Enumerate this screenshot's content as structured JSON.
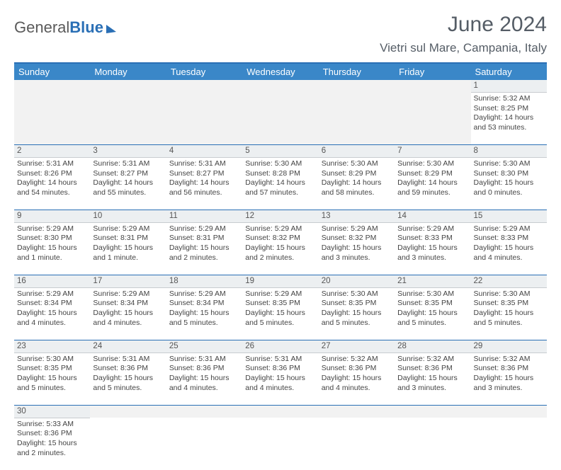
{
  "logo": {
    "text_a": "General",
    "text_b": "Blue"
  },
  "title": "June 2024",
  "location": "Vietri sul Mare, Campania, Italy",
  "colors": {
    "header_bg": "#3a87c8",
    "border": "#2a6fb5",
    "daynum_bg": "#eceff1",
    "text": "#444444"
  },
  "day_headers": [
    "Sunday",
    "Monday",
    "Tuesday",
    "Wednesday",
    "Thursday",
    "Friday",
    "Saturday"
  ],
  "weeks": [
    [
      null,
      null,
      null,
      null,
      null,
      null,
      {
        "n": "1",
        "sunrise": "Sunrise: 5:32 AM",
        "sunset": "Sunset: 8:25 PM",
        "daylight": "Daylight: 14 hours and 53 minutes."
      }
    ],
    [
      {
        "n": "2",
        "sunrise": "Sunrise: 5:31 AM",
        "sunset": "Sunset: 8:26 PM",
        "daylight": "Daylight: 14 hours and 54 minutes."
      },
      {
        "n": "3",
        "sunrise": "Sunrise: 5:31 AM",
        "sunset": "Sunset: 8:27 PM",
        "daylight": "Daylight: 14 hours and 55 minutes."
      },
      {
        "n": "4",
        "sunrise": "Sunrise: 5:31 AM",
        "sunset": "Sunset: 8:27 PM",
        "daylight": "Daylight: 14 hours and 56 minutes."
      },
      {
        "n": "5",
        "sunrise": "Sunrise: 5:30 AM",
        "sunset": "Sunset: 8:28 PM",
        "daylight": "Daylight: 14 hours and 57 minutes."
      },
      {
        "n": "6",
        "sunrise": "Sunrise: 5:30 AM",
        "sunset": "Sunset: 8:29 PM",
        "daylight": "Daylight: 14 hours and 58 minutes."
      },
      {
        "n": "7",
        "sunrise": "Sunrise: 5:30 AM",
        "sunset": "Sunset: 8:29 PM",
        "daylight": "Daylight: 14 hours and 59 minutes."
      },
      {
        "n": "8",
        "sunrise": "Sunrise: 5:30 AM",
        "sunset": "Sunset: 8:30 PM",
        "daylight": "Daylight: 15 hours and 0 minutes."
      }
    ],
    [
      {
        "n": "9",
        "sunrise": "Sunrise: 5:29 AM",
        "sunset": "Sunset: 8:30 PM",
        "daylight": "Daylight: 15 hours and 1 minute."
      },
      {
        "n": "10",
        "sunrise": "Sunrise: 5:29 AM",
        "sunset": "Sunset: 8:31 PM",
        "daylight": "Daylight: 15 hours and 1 minute."
      },
      {
        "n": "11",
        "sunrise": "Sunrise: 5:29 AM",
        "sunset": "Sunset: 8:31 PM",
        "daylight": "Daylight: 15 hours and 2 minutes."
      },
      {
        "n": "12",
        "sunrise": "Sunrise: 5:29 AM",
        "sunset": "Sunset: 8:32 PM",
        "daylight": "Daylight: 15 hours and 2 minutes."
      },
      {
        "n": "13",
        "sunrise": "Sunrise: 5:29 AM",
        "sunset": "Sunset: 8:32 PM",
        "daylight": "Daylight: 15 hours and 3 minutes."
      },
      {
        "n": "14",
        "sunrise": "Sunrise: 5:29 AM",
        "sunset": "Sunset: 8:33 PM",
        "daylight": "Daylight: 15 hours and 3 minutes."
      },
      {
        "n": "15",
        "sunrise": "Sunrise: 5:29 AM",
        "sunset": "Sunset: 8:33 PM",
        "daylight": "Daylight: 15 hours and 4 minutes."
      }
    ],
    [
      {
        "n": "16",
        "sunrise": "Sunrise: 5:29 AM",
        "sunset": "Sunset: 8:34 PM",
        "daylight": "Daylight: 15 hours and 4 minutes."
      },
      {
        "n": "17",
        "sunrise": "Sunrise: 5:29 AM",
        "sunset": "Sunset: 8:34 PM",
        "daylight": "Daylight: 15 hours and 4 minutes."
      },
      {
        "n": "18",
        "sunrise": "Sunrise: 5:29 AM",
        "sunset": "Sunset: 8:34 PM",
        "daylight": "Daylight: 15 hours and 5 minutes."
      },
      {
        "n": "19",
        "sunrise": "Sunrise: 5:29 AM",
        "sunset": "Sunset: 8:35 PM",
        "daylight": "Daylight: 15 hours and 5 minutes."
      },
      {
        "n": "20",
        "sunrise": "Sunrise: 5:30 AM",
        "sunset": "Sunset: 8:35 PM",
        "daylight": "Daylight: 15 hours and 5 minutes."
      },
      {
        "n": "21",
        "sunrise": "Sunrise: 5:30 AM",
        "sunset": "Sunset: 8:35 PM",
        "daylight": "Daylight: 15 hours and 5 minutes."
      },
      {
        "n": "22",
        "sunrise": "Sunrise: 5:30 AM",
        "sunset": "Sunset: 8:35 PM",
        "daylight": "Daylight: 15 hours and 5 minutes."
      }
    ],
    [
      {
        "n": "23",
        "sunrise": "Sunrise: 5:30 AM",
        "sunset": "Sunset: 8:35 PM",
        "daylight": "Daylight: 15 hours and 5 minutes."
      },
      {
        "n": "24",
        "sunrise": "Sunrise: 5:31 AM",
        "sunset": "Sunset: 8:36 PM",
        "daylight": "Daylight: 15 hours and 5 minutes."
      },
      {
        "n": "25",
        "sunrise": "Sunrise: 5:31 AM",
        "sunset": "Sunset: 8:36 PM",
        "daylight": "Daylight: 15 hours and 4 minutes."
      },
      {
        "n": "26",
        "sunrise": "Sunrise: 5:31 AM",
        "sunset": "Sunset: 8:36 PM",
        "daylight": "Daylight: 15 hours and 4 minutes."
      },
      {
        "n": "27",
        "sunrise": "Sunrise: 5:32 AM",
        "sunset": "Sunset: 8:36 PM",
        "daylight": "Daylight: 15 hours and 4 minutes."
      },
      {
        "n": "28",
        "sunrise": "Sunrise: 5:32 AM",
        "sunset": "Sunset: 8:36 PM",
        "daylight": "Daylight: 15 hours and 3 minutes."
      },
      {
        "n": "29",
        "sunrise": "Sunrise: 5:32 AM",
        "sunset": "Sunset: 8:36 PM",
        "daylight": "Daylight: 15 hours and 3 minutes."
      }
    ],
    [
      {
        "n": "30",
        "sunrise": "Sunrise: 5:33 AM",
        "sunset": "Sunset: 8:36 PM",
        "daylight": "Daylight: 15 hours and 2 minutes."
      },
      null,
      null,
      null,
      null,
      null,
      null
    ]
  ]
}
